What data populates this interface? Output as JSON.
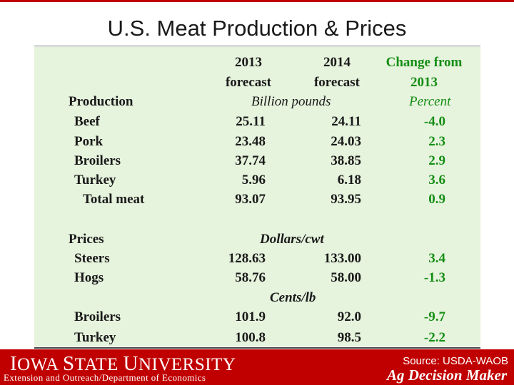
{
  "slide": {
    "title": "U.S. Meat Production & Prices"
  },
  "table": {
    "headers": {
      "col_2013": [
        "2013",
        "forecast"
      ],
      "col_2014": [
        "2014",
        "forecast"
      ],
      "col_change": [
        "Change from",
        "2013"
      ]
    },
    "production": {
      "section_label": "Production",
      "unit": "Billion pounds",
      "change_unit": "Percent",
      "rows": [
        {
          "label": "Beef",
          "v2013": "25.11",
          "v2014": "24.11",
          "change": "-4.0"
        },
        {
          "label": "Pork",
          "v2013": "23.48",
          "v2014": "24.03",
          "change": "2.3"
        },
        {
          "label": "Broilers",
          "v2013": "37.74",
          "v2014": "38.85",
          "change": "2.9"
        },
        {
          "label": "Turkey",
          "v2013": "5.96",
          "v2014": "6.18",
          "change": "3.6"
        },
        {
          "label": "Total meat",
          "v2013": "93.07",
          "v2014": "93.95",
          "change": "0.9"
        }
      ]
    },
    "prices": {
      "section_label": "Prices",
      "unit_cwt": "Dollars/cwt",
      "rows_cwt": [
        {
          "label": "Steers",
          "v2013": "128.63",
          "v2014": "133.00",
          "change": "3.4"
        },
        {
          "label": "Hogs",
          "v2013": "58.76",
          "v2014": "58.00",
          "change": "-1.3"
        }
      ],
      "unit_lb": "Cents/lb",
      "rows_lb": [
        {
          "label": "Broilers",
          "v2013": "101.9",
          "v2014": "92.0",
          "change": "-9.7"
        },
        {
          "label": "Turkey",
          "v2013": "100.8",
          "v2014": "98.5",
          "change": "-2.2"
        }
      ]
    }
  },
  "footer": {
    "university_initial_1": "I",
    "university_rest_1": "OWA ",
    "university_initial_2": "S",
    "university_rest_2": "TATE ",
    "university_initial_3": "U",
    "university_rest_3": "NIVERSITY",
    "extension": "Extension and Outreach/Department of Economics",
    "source": "Source: USDA-WAOB",
    "brand": "Ag Decision Maker"
  }
}
